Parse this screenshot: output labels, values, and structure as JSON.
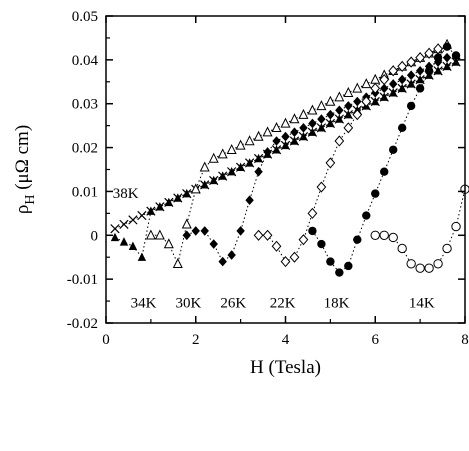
{
  "chart_data": {
    "type": "scatter",
    "xlabel": "H (Tesla)",
    "ylabel": {
      "base": "ρ",
      "subscript": "H",
      "units": " (μΩ cm)"
    },
    "xlim": [
      0,
      8
    ],
    "ylim": [
      -0.02,
      0.05
    ],
    "xticks": [
      0,
      2,
      4,
      6,
      8
    ],
    "xtick_labels": [
      "0",
      "2",
      "4",
      "6",
      "8"
    ],
    "yticks": [
      -0.02,
      -0.01,
      0,
      0.01,
      0.02,
      0.03,
      0.04,
      0.05
    ],
    "ytick_labels": [
      "-0.02",
      "-0.01",
      "0",
      "0.01",
      "0.02",
      "0.03",
      "0.04",
      "0.05"
    ],
    "grid": false,
    "series": [
      {
        "name": "38K",
        "marker": "cross",
        "color": "#000000",
        "points": [
          [
            0.2,
            0.0015
          ],
          [
            0.4,
            0.0025
          ],
          [
            0.6,
            0.0035
          ],
          [
            0.8,
            0.0045
          ],
          [
            1.0,
            0.0055
          ],
          [
            1.2,
            0.0065
          ],
          [
            1.4,
            0.0075
          ],
          [
            1.6,
            0.0085
          ],
          [
            1.8,
            0.0095
          ],
          [
            2.0,
            0.0105
          ],
          [
            2.2,
            0.0115
          ],
          [
            2.4,
            0.0125
          ],
          [
            2.6,
            0.0135
          ],
          [
            2.8,
            0.0145
          ],
          [
            3.0,
            0.0155
          ],
          [
            3.2,
            0.0165
          ],
          [
            3.4,
            0.0175
          ],
          [
            3.6,
            0.0185
          ],
          [
            3.8,
            0.0195
          ],
          [
            4.0,
            0.0205
          ],
          [
            4.2,
            0.0215
          ],
          [
            4.4,
            0.0225
          ],
          [
            4.6,
            0.0235
          ],
          [
            4.8,
            0.0245
          ],
          [
            5.0,
            0.0255
          ],
          [
            5.2,
            0.0265
          ],
          [
            5.4,
            0.0275
          ],
          [
            5.6,
            0.0285
          ],
          [
            5.8,
            0.0295
          ],
          [
            6.0,
            0.0305
          ],
          [
            6.2,
            0.0315
          ],
          [
            6.4,
            0.0325
          ],
          [
            6.6,
            0.0335
          ],
          [
            6.8,
            0.0345
          ],
          [
            7.0,
            0.0355
          ],
          [
            7.2,
            0.0365
          ],
          [
            7.4,
            0.0375
          ],
          [
            7.6,
            0.0385
          ],
          [
            7.8,
            0.0395
          ]
        ]
      },
      {
        "name": "34K",
        "marker": "triangle-filled",
        "color": "#000000",
        "points": [
          [
            0.2,
            -0.0005
          ],
          [
            0.4,
            -0.0015
          ],
          [
            0.6,
            -0.0025
          ],
          [
            0.8,
            -0.005
          ],
          [
            1.0,
            0.0055
          ],
          [
            1.2,
            0.0065
          ],
          [
            1.4,
            0.0075
          ],
          [
            1.6,
            0.0085
          ],
          [
            1.8,
            0.0095
          ],
          [
            2.0,
            0.0105
          ],
          [
            2.2,
            0.0115
          ],
          [
            2.4,
            0.0125
          ],
          [
            2.6,
            0.0135
          ],
          [
            2.8,
            0.0145
          ],
          [
            3.0,
            0.0155
          ],
          [
            3.2,
            0.0165
          ],
          [
            3.4,
            0.0175
          ],
          [
            3.6,
            0.0185
          ],
          [
            3.8,
            0.0195
          ],
          [
            4.0,
            0.0205
          ],
          [
            4.2,
            0.0215
          ],
          [
            4.4,
            0.0225
          ],
          [
            4.6,
            0.0235
          ],
          [
            4.8,
            0.0245
          ],
          [
            5.0,
            0.0255
          ],
          [
            5.2,
            0.0265
          ],
          [
            5.4,
            0.0275
          ],
          [
            5.6,
            0.0285
          ],
          [
            5.8,
            0.0295
          ],
          [
            6.0,
            0.0305
          ],
          [
            6.2,
            0.0315
          ],
          [
            6.4,
            0.0325
          ],
          [
            6.6,
            0.0335
          ],
          [
            6.8,
            0.0345
          ],
          [
            7.0,
            0.0355
          ],
          [
            7.2,
            0.0365
          ],
          [
            7.4,
            0.0375
          ],
          [
            7.6,
            0.0385
          ],
          [
            7.8,
            0.0395
          ]
        ]
      },
      {
        "name": "30K",
        "marker": "triangle-open",
        "color": "#000000",
        "points": [
          [
            1.0,
            0.0
          ],
          [
            1.2,
            0.0
          ],
          [
            1.4,
            -0.002
          ],
          [
            1.6,
            -0.0065
          ],
          [
            1.8,
            0.0025
          ],
          [
            2.0,
            0.0105
          ],
          [
            2.2,
            0.0155
          ],
          [
            2.4,
            0.0175
          ],
          [
            2.6,
            0.0185
          ],
          [
            2.8,
            0.0195
          ],
          [
            3.0,
            0.0205
          ],
          [
            3.2,
            0.0215
          ],
          [
            3.4,
            0.0225
          ],
          [
            3.6,
            0.0235
          ],
          [
            3.8,
            0.0245
          ],
          [
            4.0,
            0.0255
          ],
          [
            4.2,
            0.0265
          ],
          [
            4.4,
            0.0275
          ],
          [
            4.6,
            0.0285
          ],
          [
            4.8,
            0.0295
          ],
          [
            5.0,
            0.0305
          ],
          [
            5.2,
            0.0315
          ],
          [
            5.4,
            0.0325
          ],
          [
            5.6,
            0.0335
          ],
          [
            5.8,
            0.0345
          ],
          [
            6.0,
            0.0355
          ],
          [
            6.2,
            0.0365
          ],
          [
            6.4,
            0.0375
          ],
          [
            6.6,
            0.0385
          ],
          [
            6.8,
            0.0395
          ],
          [
            7.0,
            0.0405
          ],
          [
            7.2,
            0.0415
          ],
          [
            7.4,
            0.0425
          ],
          [
            7.6,
            0.0435
          ]
        ]
      },
      {
        "name": "26K",
        "marker": "diamond-filled",
        "color": "#000000",
        "points": [
          [
            1.8,
            0.0
          ],
          [
            2.0,
            0.001
          ],
          [
            2.2,
            0.001
          ],
          [
            2.4,
            -0.002
          ],
          [
            2.6,
            -0.006
          ],
          [
            2.8,
            -0.0045
          ],
          [
            3.0,
            0.001
          ],
          [
            3.2,
            0.008
          ],
          [
            3.4,
            0.0145
          ],
          [
            3.6,
            0.019
          ],
          [
            3.8,
            0.0215
          ],
          [
            4.0,
            0.0225
          ],
          [
            4.2,
            0.0235
          ],
          [
            4.4,
            0.0245
          ],
          [
            4.6,
            0.0255
          ],
          [
            4.8,
            0.0265
          ],
          [
            5.0,
            0.0275
          ],
          [
            5.2,
            0.0285
          ],
          [
            5.4,
            0.0295
          ],
          [
            5.6,
            0.0305
          ],
          [
            5.8,
            0.0315
          ],
          [
            6.0,
            0.0325
          ],
          [
            6.2,
            0.0335
          ],
          [
            6.4,
            0.0345
          ],
          [
            6.6,
            0.0355
          ],
          [
            6.8,
            0.0365
          ],
          [
            7.0,
            0.0375
          ],
          [
            7.2,
            0.0385
          ],
          [
            7.4,
            0.0395
          ],
          [
            7.6,
            0.0405
          ]
        ]
      },
      {
        "name": "22K",
        "marker": "diamond-open",
        "color": "#000000",
        "points": [
          [
            3.4,
            0.0
          ],
          [
            3.6,
            0.0
          ],
          [
            3.8,
            -0.0025
          ],
          [
            4.0,
            -0.006
          ],
          [
            4.2,
            -0.005
          ],
          [
            4.4,
            -0.001
          ],
          [
            4.6,
            0.005
          ],
          [
            4.8,
            0.011
          ],
          [
            5.0,
            0.0165
          ],
          [
            5.2,
            0.0215
          ],
          [
            5.4,
            0.0245
          ],
          [
            5.6,
            0.0275
          ],
          [
            5.8,
            0.0305
          ],
          [
            6.0,
            0.0335
          ],
          [
            6.2,
            0.0355
          ],
          [
            6.4,
            0.0375
          ],
          [
            6.6,
            0.0385
          ],
          [
            6.8,
            0.0395
          ],
          [
            7.0,
            0.0405
          ],
          [
            7.2,
            0.0415
          ],
          [
            7.4,
            0.0425
          ]
        ]
      },
      {
        "name": "18K",
        "marker": "circle-filled",
        "color": "#000000",
        "points": [
          [
            4.6,
            0.001
          ],
          [
            4.8,
            -0.002
          ],
          [
            5.0,
            -0.006
          ],
          [
            5.2,
            -0.0085
          ],
          [
            5.4,
            -0.007
          ],
          [
            5.6,
            -0.001
          ],
          [
            5.8,
            0.0045
          ],
          [
            6.0,
            0.0095
          ],
          [
            6.2,
            0.0145
          ],
          [
            6.4,
            0.0195
          ],
          [
            6.6,
            0.0245
          ],
          [
            6.8,
            0.0295
          ],
          [
            7.0,
            0.0335
          ],
          [
            7.2,
            0.0375
          ],
          [
            7.4,
            0.0405
          ],
          [
            7.6,
            0.043
          ],
          [
            7.8,
            0.041
          ]
        ]
      },
      {
        "name": "14K",
        "marker": "circle-open",
        "color": "#000000",
        "points": [
          [
            6.0,
            0.0
          ],
          [
            6.2,
            0.0
          ],
          [
            6.4,
            -0.0005
          ],
          [
            6.6,
            -0.003
          ],
          [
            6.8,
            -0.0065
          ],
          [
            7.0,
            -0.0075
          ],
          [
            7.2,
            -0.0075
          ],
          [
            7.4,
            -0.0065
          ],
          [
            7.6,
            -0.003
          ],
          [
            7.8,
            0.002
          ],
          [
            8.0,
            0.0105
          ]
        ]
      }
    ],
    "annotations": [
      {
        "text": "38K",
        "x": 0.15,
        "y": 0.0085
      },
      {
        "text": "34K",
        "x": 0.55,
        "y": -0.0165
      },
      {
        "text": "30K",
        "x": 1.55,
        "y": -0.0165
      },
      {
        "text": "26K",
        "x": 2.55,
        "y": -0.0165
      },
      {
        "text": "22K",
        "x": 3.65,
        "y": -0.0165
      },
      {
        "text": "18K",
        "x": 4.85,
        "y": -0.0165
      },
      {
        "text": "14K",
        "x": 6.75,
        "y": -0.0165
      }
    ]
  }
}
